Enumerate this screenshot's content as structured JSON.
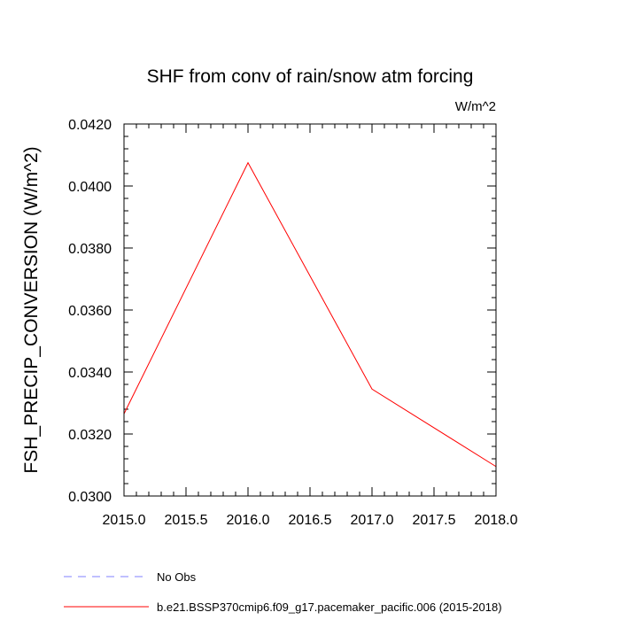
{
  "chart_data": {
    "type": "line",
    "title": "SHF from conv of rain/snow atm forcing",
    "units_label": "W/m^2",
    "xlabel": "",
    "ylabel": "FSH_PRECIP_CONVERSION  (W/m^2)",
    "xlim": [
      2015.0,
      2018.0
    ],
    "ylim": [
      0.03,
      0.042
    ],
    "x_ticks": [
      2015.0,
      2015.5,
      2016.0,
      2016.5,
      2017.0,
      2017.5,
      2018.0
    ],
    "x_tick_labels": [
      "2015.0",
      "2015.5",
      "2016.0",
      "2016.5",
      "2017.0",
      "2017.5",
      "2018.0"
    ],
    "y_ticks": [
      0.03,
      0.032,
      0.034,
      0.036,
      0.038,
      0.04,
      0.042
    ],
    "y_tick_labels": [
      "0.0300",
      "0.0320",
      "0.0340",
      "0.0360",
      "0.0380",
      "0.0400",
      "0.0420"
    ],
    "x_minor_step": 0.1,
    "y_minor_step": 0.0004,
    "grid": false,
    "legend_position": "bottom-left, below plot",
    "series": [
      {
        "name": "No Obs",
        "color": "#8080ff",
        "dash": "dashed",
        "x": [],
        "values": []
      },
      {
        "name": "b.e21.BSSP370cmip6.f09_g17.pacemaker_pacific.006 (2015-2018)",
        "color": "#ff0000",
        "dash": "solid",
        "x": [
          2015,
          2016,
          2017,
          2018
        ],
        "values": [
          0.03265,
          0.04075,
          0.03345,
          0.03095
        ]
      }
    ]
  }
}
